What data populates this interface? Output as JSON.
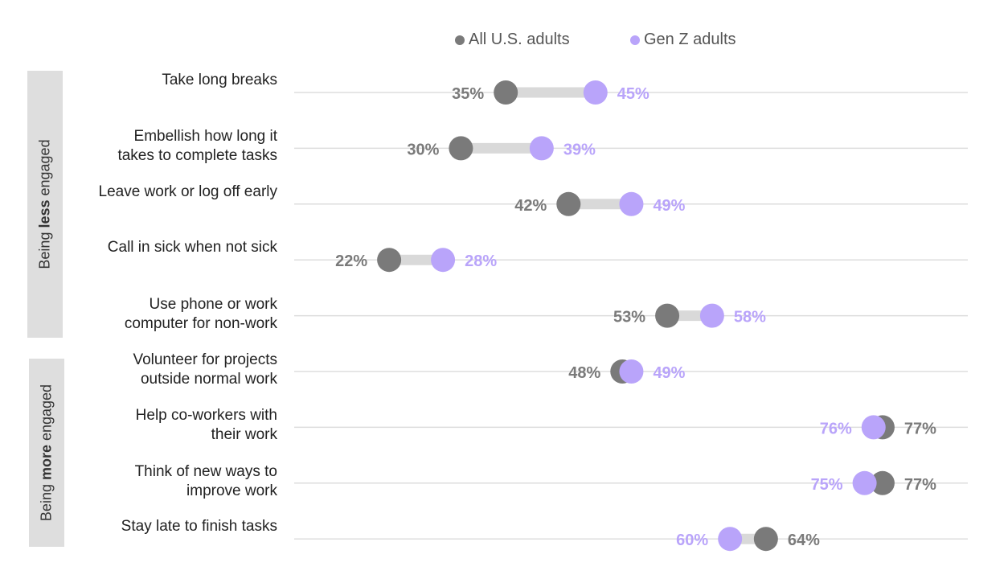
{
  "colors": {
    "all_adults": "#7a7a7a",
    "gen_z": "#b9a4fa",
    "connector": "#d9d9d9",
    "gridline": "#dddddd",
    "group_box": "#dedede"
  },
  "legend": {
    "all_adults": "All U.S. adults",
    "gen_z": "Gen Z adults"
  },
  "groups": {
    "less": {
      "prefix": "Being ",
      "bold": "less",
      "suffix": " engaged"
    },
    "more": {
      "prefix": "Being ",
      "bold": "more",
      "suffix": " engaged"
    }
  },
  "chart_data": {
    "type": "dumbbell",
    "title": "",
    "xlabel": "",
    "ylabel": "",
    "xlim": [
      0,
      100
    ],
    "grid": true,
    "legend_position": "top",
    "categories": [
      {
        "label": "Take long breaks",
        "group": "less",
        "all_adults": 35,
        "gen_z": 45,
        "all_label": "35%",
        "gen_z_label": "45%"
      },
      {
        "label": "Embellish how long it\ntakes to complete tasks",
        "group": "less",
        "all_adults": 30,
        "gen_z": 39,
        "all_label": "30%",
        "gen_z_label": "39%"
      },
      {
        "label": "Leave work or log off early",
        "group": "less",
        "all_adults": 42,
        "gen_z": 49,
        "all_label": "42%",
        "gen_z_label": "49%"
      },
      {
        "label": "Call in sick when not sick",
        "group": "less",
        "all_adults": 22,
        "gen_z": 28,
        "all_label": "22%",
        "gen_z_label": "28%"
      },
      {
        "label": "Use phone or work\ncomputer for non-work",
        "group": "less",
        "all_adults": 53,
        "gen_z": 58,
        "all_label": "53%",
        "gen_z_label": "58%"
      },
      {
        "label": "Volunteer for projects\noutside normal work",
        "group": "more",
        "all_adults": 48,
        "gen_z": 49,
        "all_label": "48%",
        "gen_z_label": "49%"
      },
      {
        "label": "Help co-workers with\ntheir work",
        "group": "more",
        "all_adults": 77,
        "gen_z": 76,
        "all_label": "77%",
        "gen_z_label": "76%"
      },
      {
        "label": "Think of new ways to\nimprove work",
        "group": "more",
        "all_adults": 77,
        "gen_z": 75,
        "all_label": "77%",
        "gen_z_label": "75%"
      },
      {
        "label": "Stay late to finish tasks",
        "group": "more",
        "all_adults": 64,
        "gen_z": 60,
        "all_label": "64%",
        "gen_z_label": "60%"
      }
    ],
    "series": [
      {
        "name": "All U.S. adults",
        "key": "all_adults"
      },
      {
        "name": "Gen Z adults",
        "key": "gen_z"
      }
    ]
  }
}
